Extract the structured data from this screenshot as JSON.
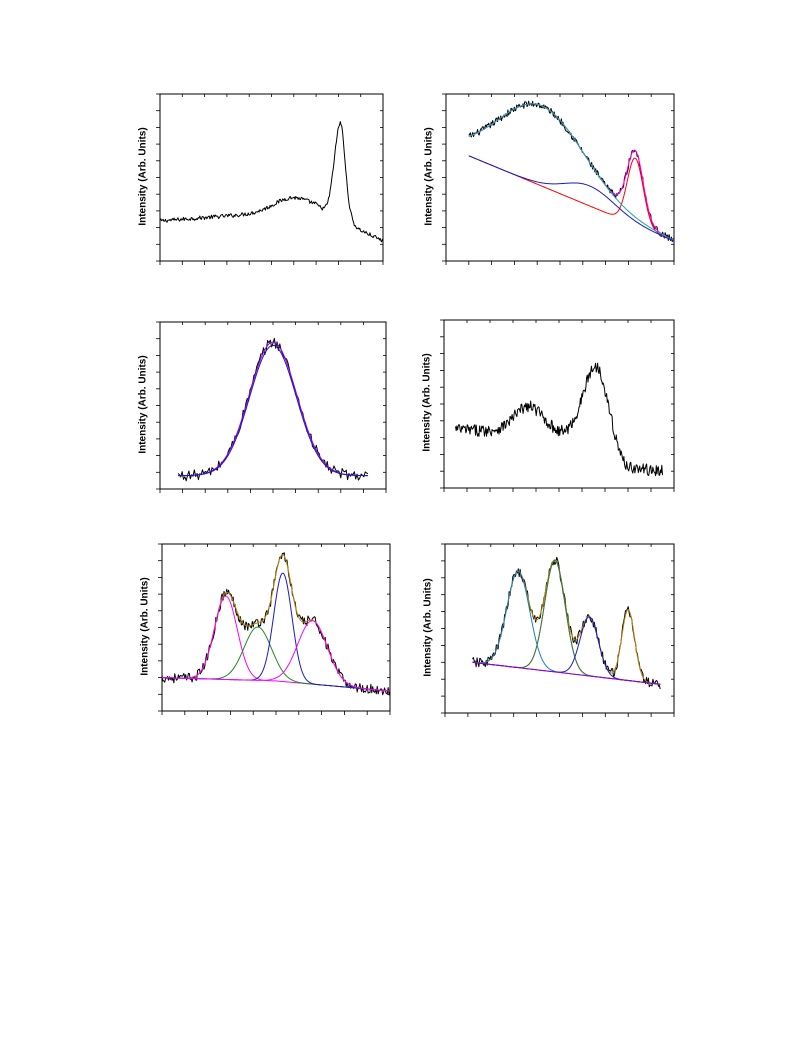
{
  "ylabel": "Intensity (Arb. Units)",
  "colors": {
    "data": "#000000",
    "red": "#ff0000",
    "blue": "#1a1acc",
    "cyan": "#21a6a6",
    "magenta": "#ff00ff",
    "purple": "#9900cc",
    "green": "#228b22",
    "olive": "#b8860b",
    "teal": "#1f7fb4"
  },
  "chart_data": [
    {
      "id": "panel-a",
      "type": "line",
      "xlabel": "",
      "ylabel": "Intensity (Arb. Units)",
      "xlim": [
        0,
        100
      ],
      "ylim": [
        0,
        100
      ],
      "ticks_x": 10,
      "ticks_y": 10,
      "series": [
        {
          "kind": "data",
          "color": "data",
          "noise": 1.2,
          "model": {
            "base": [
              [
                0,
                24
              ],
              [
                40,
                28
              ],
              [
                70,
                31
              ],
              [
                100,
                12
              ]
            ],
            "peaks": [
              [
                59,
                8,
                8
              ],
              [
                80.5,
                2.6,
                52
              ],
              [
                81.5,
                1.2,
                8
              ]
            ]
          }
        }
      ]
    },
    {
      "id": "panel-b",
      "type": "line",
      "xlabel": "",
      "ylabel": "Intensity (Arb. Units)",
      "xlim": [
        0,
        100
      ],
      "ylim": [
        0,
        100
      ],
      "ticks_x": 10,
      "ticks_y": 10,
      "series": [
        {
          "kind": "data",
          "color": "data",
          "noise": 2.0,
          "x0": 10,
          "x1": 100,
          "model": {
            "base": [
              [
                10,
                63
              ],
              [
                100,
                12
              ]
            ],
            "peaks": [
              [
                42,
                19,
                48
              ],
              [
                83,
                3.5,
                40
              ]
            ]
          }
        },
        {
          "kind": "fit",
          "color": "magenta",
          "model": {
            "base": [
              [
                10,
                63
              ],
              [
                100,
                12
              ]
            ],
            "peaks": [
              [
                42,
                19,
                48
              ],
              [
                83,
                3.5,
                40
              ]
            ]
          },
          "x0": 10,
          "x1": 100
        },
        {
          "kind": "fit",
          "color": "red",
          "model": {
            "base": [
              [
                10,
                63
              ],
              [
                100,
                12
              ]
            ],
            "peaks": [
              [
                83,
                3.5,
                40
              ]
            ]
          },
          "x0": 10,
          "x1": 100
        },
        {
          "kind": "fit",
          "color": "cyan",
          "model": {
            "base": [
              [
                10,
                63
              ],
              [
                100,
                12
              ]
            ],
            "peaks": [
              [
                42,
                19,
                48
              ]
            ]
          },
          "x0": 10,
          "x1": 100
        },
        {
          "kind": "fit",
          "color": "blue",
          "model": {
            "base": [
              [
                10,
                63
              ],
              [
                100,
                12
              ]
            ],
            "peaks": [
              [
                63,
                11,
                12
              ]
            ]
          },
          "x0": 10,
          "x1": 100
        }
      ]
    },
    {
      "id": "panel-c",
      "type": "line",
      "xlabel": "",
      "ylabel": "Intensity (Arb. Units)",
      "xlim": [
        0,
        100
      ],
      "ylim": [
        0,
        100
      ],
      "ticks_x": 10,
      "ticks_y": 10,
      "series": [
        {
          "kind": "data",
          "color": "data",
          "noise": 3.2,
          "x0": 8,
          "x1": 92,
          "step": 0.6,
          "model": {
            "base": [
              [
                8,
                8
              ],
              [
                92,
                8
              ]
            ],
            "peaks": [
              [
                50,
                10.5,
                80
              ]
            ]
          }
        },
        {
          "kind": "fit",
          "color": "purple",
          "x0": 8,
          "x1": 92,
          "model": {
            "base": [
              [
                8,
                8
              ],
              [
                92,
                8
              ]
            ],
            "peaks": [
              [
                50,
                10.5,
                80
              ]
            ]
          }
        },
        {
          "kind": "fit",
          "color": "blue",
          "x0": 8,
          "x1": 92,
          "model": {
            "base": [
              [
                8,
                8
              ],
              [
                92,
                8
              ]
            ],
            "peaks": [
              [
                50,
                10.3,
                78
              ]
            ]
          }
        }
      ]
    },
    {
      "id": "panel-d",
      "type": "line",
      "xlabel": "",
      "ylabel": "Intensity (Arb. Units)",
      "xlim": [
        0,
        100
      ],
      "ylim": [
        0,
        100
      ],
      "ticks_x": 10,
      "ticks_y": 10,
      "series": [
        {
          "kind": "data",
          "color": "data",
          "noise": 3.5,
          "x0": 5,
          "x1": 95,
          "step": 0.3,
          "model": {
            "base": [
              [
                5,
                35
              ],
              [
                68,
                30
              ],
              [
                78,
                12
              ],
              [
                95,
                10
              ]
            ],
            "peaks": [
              [
                37,
                6.5,
                16
              ],
              [
                66,
                5.5,
                42
              ]
            ]
          }
        }
      ]
    },
    {
      "id": "panel-e",
      "type": "line",
      "xlabel": "",
      "ylabel": "Intensity (Arb. Units)",
      "xlim": [
        0,
        100
      ],
      "ylim": [
        0,
        100
      ],
      "ticks_x": 10,
      "ticks_y": 10,
      "series": [
        {
          "kind": "data",
          "color": "data",
          "noise": 3.0,
          "x0": 0,
          "x1": 100,
          "step": 0.4,
          "model": {
            "base": [
              [
                0,
                20
              ],
              [
                50,
                18
              ],
              [
                100,
                12
              ]
            ],
            "peaks": [
              [
                28,
                5,
                50
              ],
              [
                42,
                6,
                32
              ],
              [
                53,
                4,
                65
              ],
              [
                66,
                6.5,
                38
              ]
            ]
          }
        },
        {
          "kind": "fit",
          "color": "olive",
          "x0": 0,
          "x1": 100,
          "model": {
            "base": [
              [
                0,
                20
              ],
              [
                50,
                18
              ],
              [
                100,
                12
              ]
            ],
            "peaks": [
              [
                28,
                5,
                50
              ],
              [
                42,
                6,
                32
              ],
              [
                53,
                4,
                65
              ],
              [
                66,
                6.5,
                38
              ]
            ]
          }
        },
        {
          "kind": "fit",
          "color": "magenta",
          "x0": 0,
          "x1": 100,
          "model": {
            "base": [
              [
                0,
                20
              ],
              [
                50,
                18
              ],
              [
                100,
                12
              ]
            ],
            "peaks": [
              [
                28,
                5,
                50
              ]
            ]
          }
        },
        {
          "kind": "fit",
          "color": "green",
          "x0": 0,
          "x1": 100,
          "model": {
            "base": [
              [
                0,
                20
              ],
              [
                50,
                18
              ],
              [
                100,
                12
              ]
            ],
            "peaks": [
              [
                42,
                6,
                32
              ]
            ]
          }
        },
        {
          "kind": "fit",
          "color": "blue",
          "x0": 0,
          "x1": 100,
          "model": {
            "base": [
              [
                0,
                20
              ],
              [
                50,
                18
              ],
              [
                100,
                12
              ]
            ],
            "peaks": [
              [
                53,
                4,
                65
              ]
            ]
          }
        },
        {
          "kind": "fit",
          "color": "magenta",
          "x0": 0,
          "x1": 100,
          "model": {
            "base": [
              [
                0,
                20
              ],
              [
                50,
                18
              ],
              [
                100,
                12
              ]
            ],
            "peaks": [
              [
                66,
                6.5,
                38
              ]
            ]
          }
        }
      ]
    },
    {
      "id": "panel-f",
      "type": "line",
      "xlabel": "",
      "ylabel": "Intensity (Arb. Units)",
      "xlim": [
        0,
        100
      ],
      "ylim": [
        0,
        100
      ],
      "ticks_x": 10,
      "ticks_y": 10,
      "series": [
        {
          "kind": "data",
          "color": "data",
          "noise": 3.0,
          "x0": 12,
          "x1": 94,
          "step": 0.4,
          "model": {
            "base": [
              [
                12,
                30
              ],
              [
                94,
                17
              ]
            ],
            "peaks": [
              [
                32,
                5,
                57
              ],
              [
                48,
                4.5,
                66
              ],
              [
                63,
                4,
                35
              ],
              [
                80,
                2.8,
                42
              ]
            ]
          }
        },
        {
          "kind": "fit",
          "color": "olive",
          "x0": 12,
          "x1": 94,
          "model": {
            "base": [
              [
                12,
                30
              ],
              [
                94,
                17
              ]
            ],
            "peaks": [
              [
                32,
                5,
                57
              ],
              [
                48,
                4.5,
                66
              ],
              [
                63,
                4,
                35
              ],
              [
                80,
                2.8,
                42
              ]
            ]
          }
        },
        {
          "kind": "fit",
          "color": "teal",
          "x0": 12,
          "x1": 94,
          "model": {
            "base": [
              [
                12,
                30
              ],
              [
                94,
                17
              ]
            ],
            "peaks": [
              [
                32,
                5,
                57
              ]
            ]
          }
        },
        {
          "kind": "fit",
          "color": "magenta",
          "x0": 12,
          "x1": 94,
          "model": {
            "base": [
              [
                12,
                30
              ],
              [
                94,
                17
              ]
            ],
            "peaks": [
              [
                48,
                4.5,
                66
              ]
            ]
          }
        },
        {
          "kind": "fit",
          "color": "green",
          "x0": 12,
          "x1": 94,
          "model": {
            "base": [
              [
                12,
                30
              ],
              [
                94,
                17
              ]
            ],
            "peaks": [
              [
                48,
                4.5,
                66
              ]
            ]
          }
        },
        {
          "kind": "fit",
          "color": "blue",
          "x0": 12,
          "x1": 94,
          "model": {
            "base": [
              [
                12,
                30
              ],
              [
                94,
                17
              ]
            ],
            "peaks": [
              [
                63,
                4,
                35
              ]
            ]
          }
        },
        {
          "kind": "fit",
          "color": "purple",
          "x0": 12,
          "x1": 94,
          "model": {
            "base": [
              [
                12,
                30
              ],
              [
                94,
                17
              ]
            ],
            "peaks": []
          }
        }
      ]
    }
  ]
}
